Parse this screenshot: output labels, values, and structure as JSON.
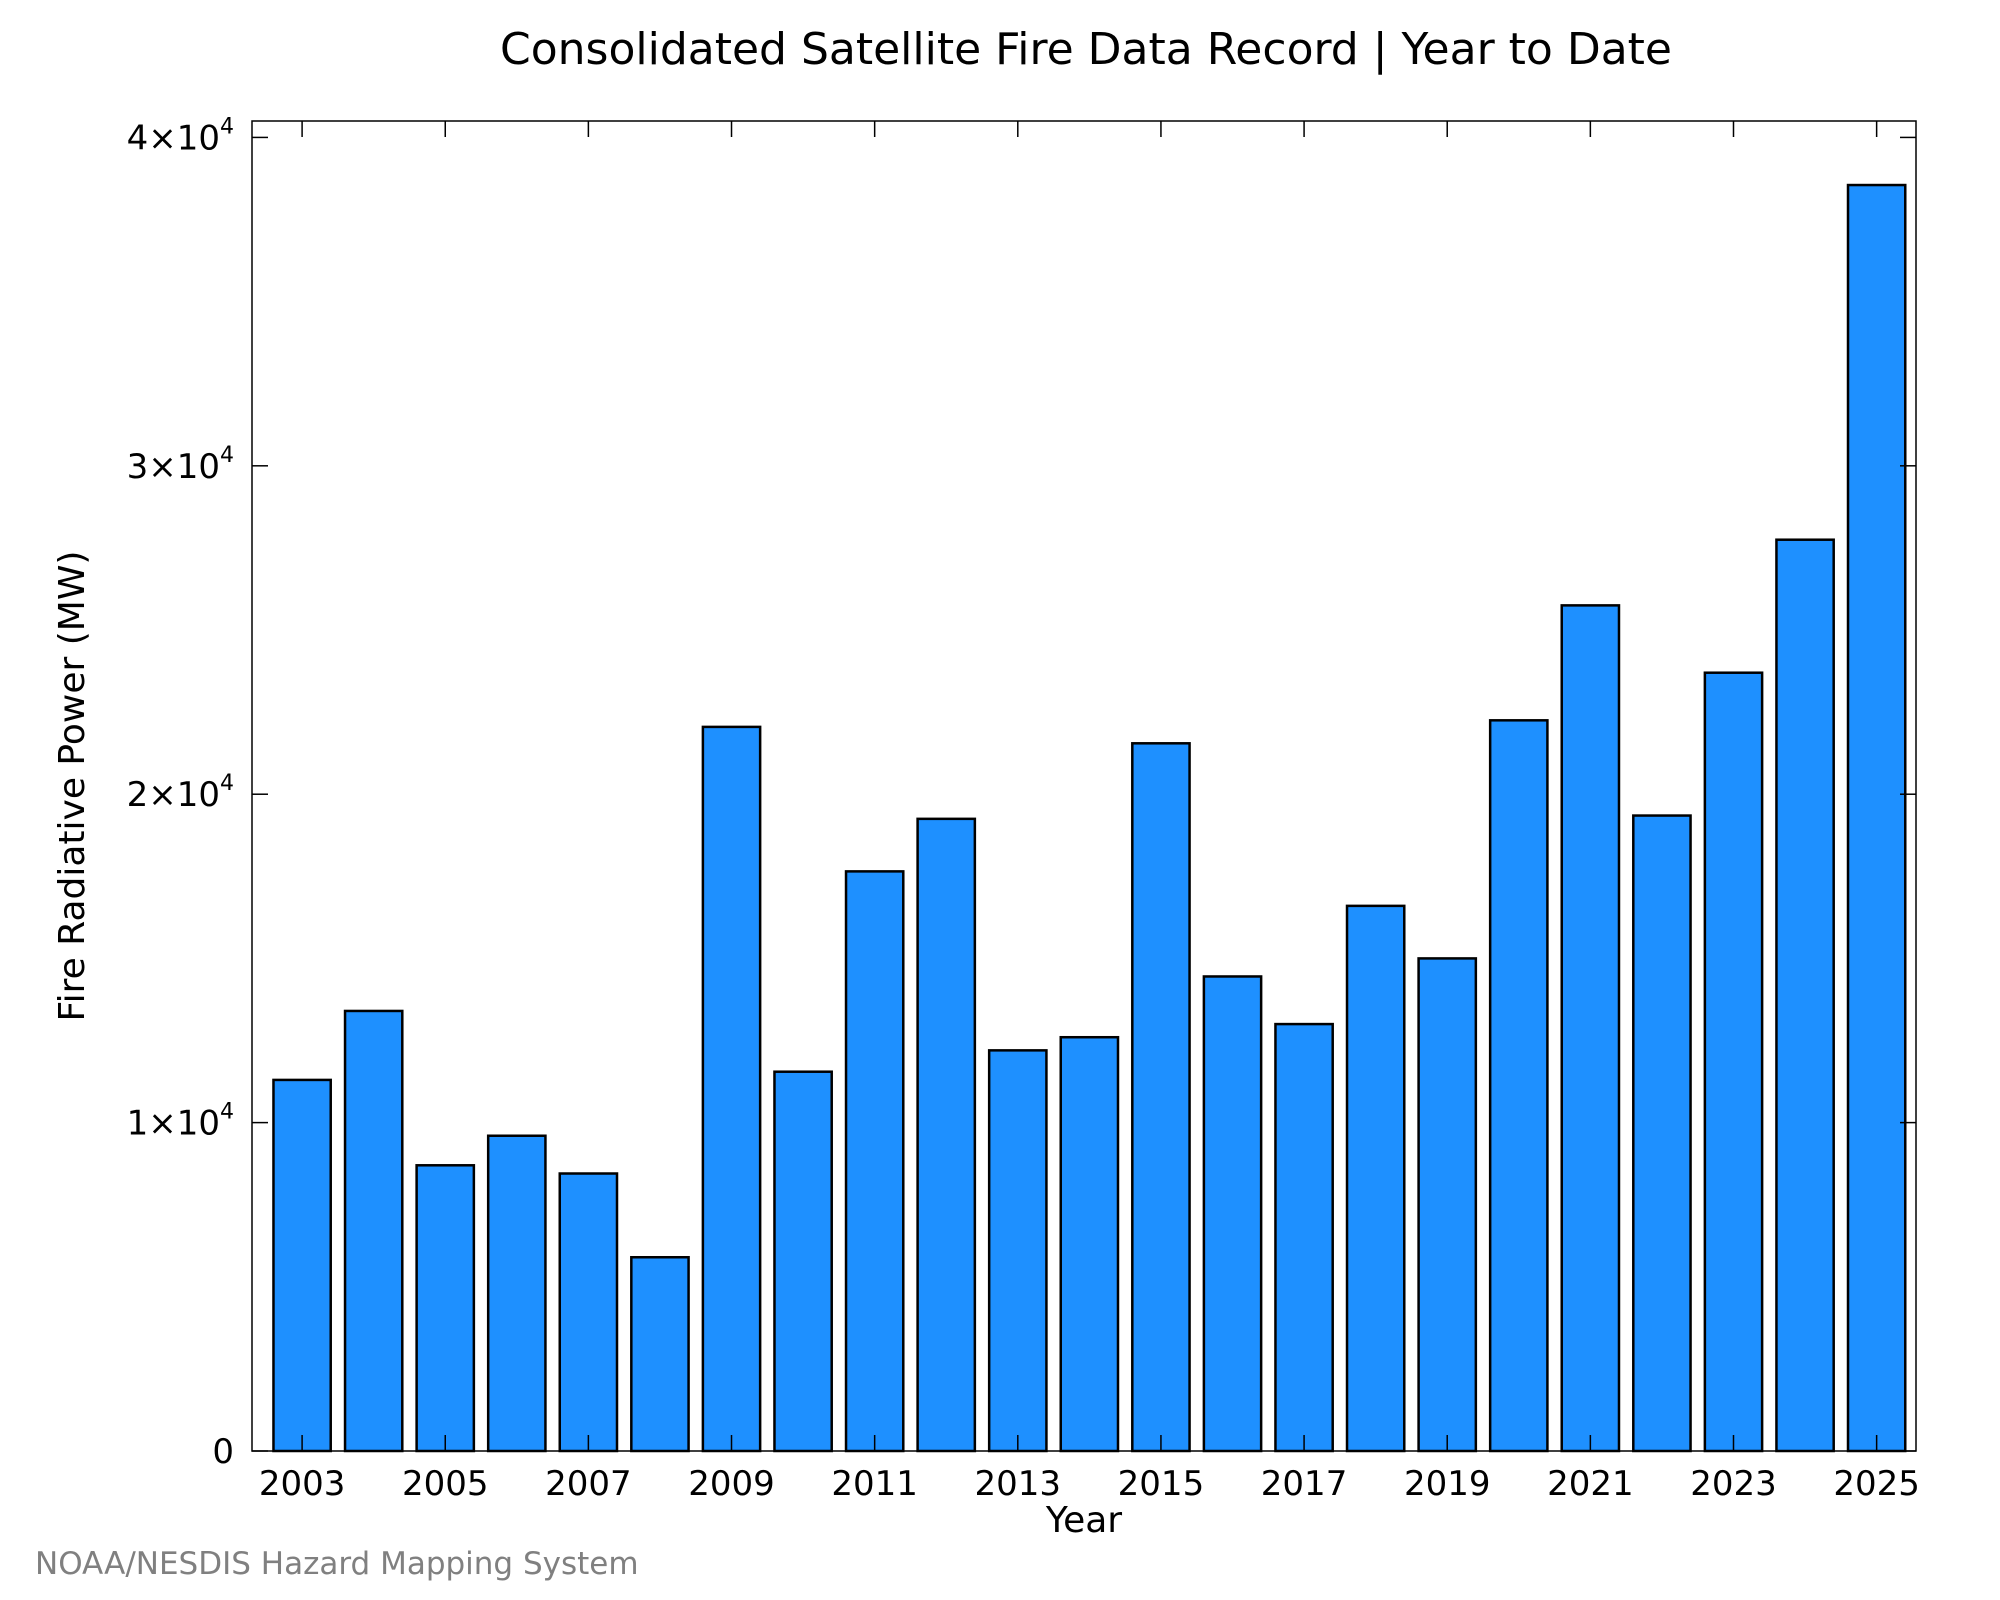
{
  "chart_data": {
    "type": "bar",
    "title": "Consolidated Satellite Fire Data Record | Year to Date",
    "xlabel": "Year",
    "ylabel": "Fire Radiative Power (MW)",
    "categories": [
      "2003",
      "2004",
      "2005",
      "2006",
      "2007",
      "2008",
      "2009",
      "2010",
      "2011",
      "2012",
      "2013",
      "2014",
      "2015",
      "2016",
      "2017",
      "2018",
      "2019",
      "2020",
      "2021",
      "2022",
      "2023",
      "2024",
      "2025"
    ],
    "values": [
      11300,
      13400,
      8700,
      9600,
      8450,
      5900,
      22050,
      11550,
      17650,
      19250,
      12200,
      12600,
      21550,
      14450,
      13000,
      16600,
      15000,
      22250,
      25750,
      19350,
      23700,
      27750,
      38550
    ],
    "x_tick_labels": [
      "2003",
      "2005",
      "2007",
      "2009",
      "2011",
      "2013",
      "2015",
      "2017",
      "2019",
      "2021",
      "2023",
      "2025"
    ],
    "y_ticks": [
      {
        "value": 0,
        "mantissa": "0",
        "exponent": ""
      },
      {
        "value": 10000,
        "mantissa": "1×10",
        "exponent": "4"
      },
      {
        "value": 20000,
        "mantissa": "2×10",
        "exponent": "4"
      },
      {
        "value": 30000,
        "mantissa": "3×10",
        "exponent": "4"
      },
      {
        "value": 40000,
        "mantissa": "4×10",
        "exponent": "4"
      }
    ],
    "ylim": [
      0,
      40500
    ],
    "grid": false,
    "legend": "none",
    "bar_color": "#1e90ff",
    "bar_edge_color": "#000000"
  },
  "credit": {
    "text": "NOAA/NESDIS Hazard Mapping System",
    "color": "#808080"
  }
}
